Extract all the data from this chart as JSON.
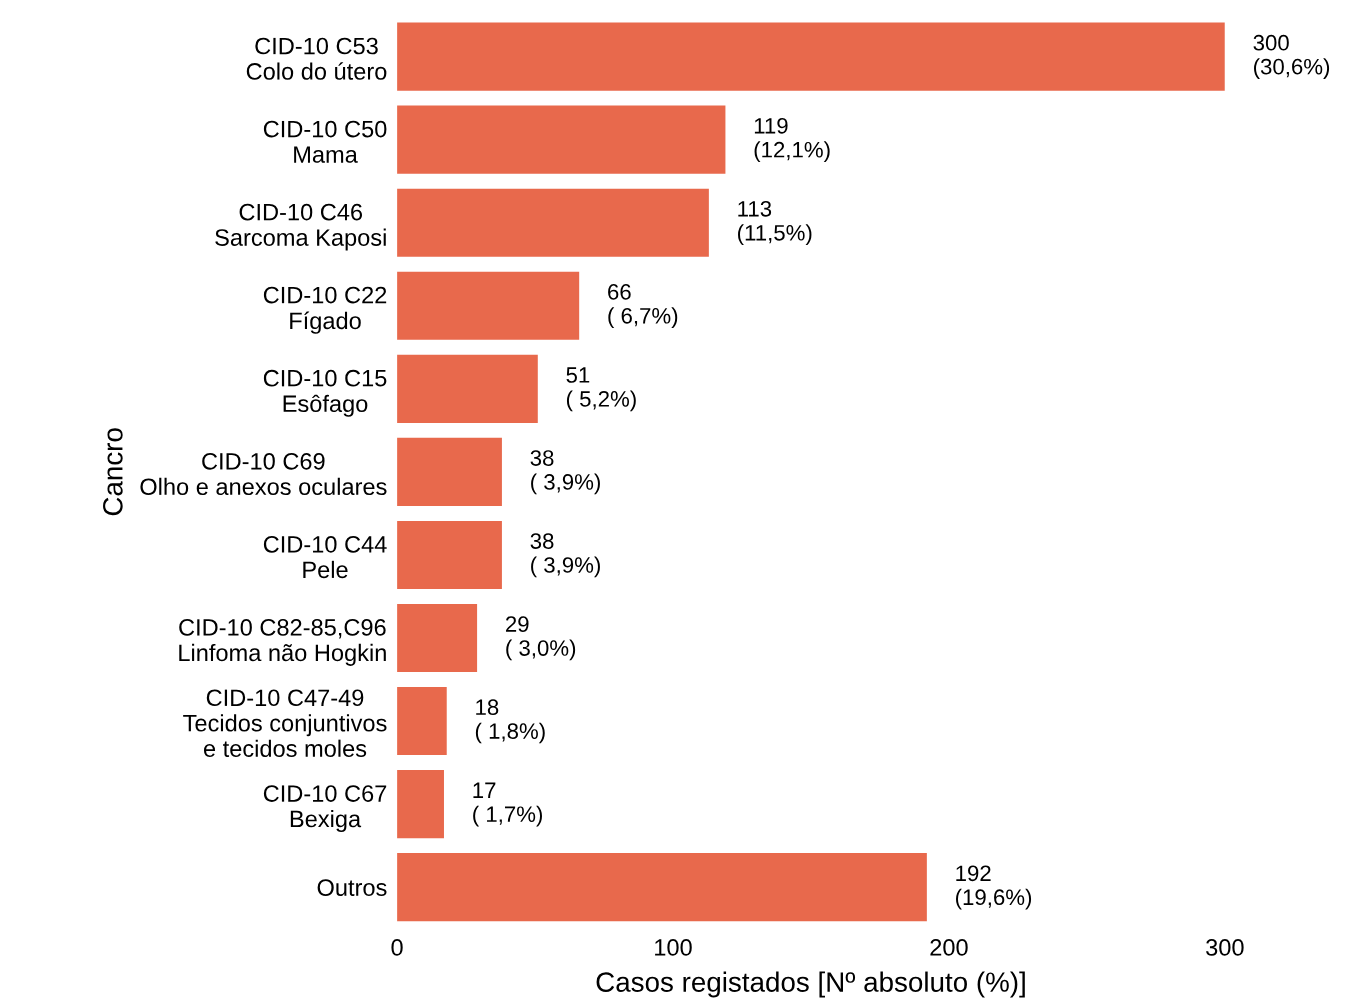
{
  "chart_data": {
    "type": "bar",
    "orientation": "horizontal",
    "xlabel": "Casos registados [Nº absoluto (%)]",
    "ylabel": "Cancro",
    "categories": [
      "CID-10 C53\nColo do útero",
      "CID-10 C50\nMama",
      "CID-10 C46\nSarcoma Kaposi",
      "CID-10 C22\nFígado",
      "CID-10 C15\nEsôfago",
      "CID-10 C69\nOlho e anexos oculares",
      "CID-10 C44\nPele",
      "CID-10 C82-85,C96\nLinfoma não Hogkin",
      "CID-10 C47-49\nTecidos conjuntivos\ne tecidos moles",
      "CID-10 C67\nBexiga",
      "Outros"
    ],
    "values": [
      300,
      119,
      113,
      66,
      51,
      38,
      38,
      29,
      18,
      17,
      192
    ],
    "value_labels": [
      "300\n(30,6%)",
      "119\n(12,1%)",
      "113\n(11,5%)",
      "66\n( 6,7%)",
      "51\n( 5,2%)",
      "38\n( 3,9%)",
      "38\n( 3,9%)",
      "29\n( 3,0%)",
      "18\n( 1,8%)",
      "17\n( 1,7%)",
      "192\n(19,6%)"
    ],
    "color": "#e8694c",
    "xlim": [
      0,
      300
    ],
    "xticks": [
      0,
      100,
      200,
      300
    ],
    "grid": false,
    "legend": false
  }
}
